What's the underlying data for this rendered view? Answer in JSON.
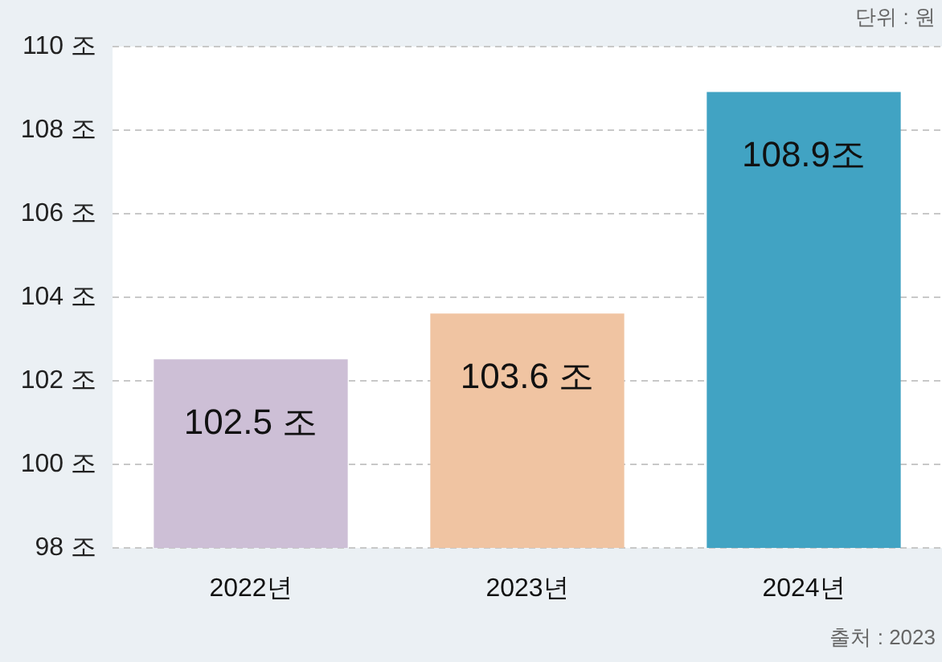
{
  "chart_data": {
    "type": "bar",
    "categories": [
      "2022년",
      "2023년",
      "2024년"
    ],
    "values": [
      102.5,
      103.6,
      108.9
    ],
    "colors": [
      "#cdbfd6",
      "#f0c4a2",
      "#41a3c3"
    ],
    "value_labels": [
      "102.5 조",
      "103.6 조",
      "108.9조"
    ],
    "ylim": [
      98,
      110
    ],
    "yticks": [
      {
        "value": 98,
        "label": "98 조"
      },
      {
        "value": 100,
        "label": "100 조"
      },
      {
        "value": 102,
        "label": "102 조"
      },
      {
        "value": 104,
        "label": "104 조"
      },
      {
        "value": 106,
        "label": "106 조"
      },
      {
        "value": 108,
        "label": "108 조"
      },
      {
        "value": 110,
        "label": "110 조"
      }
    ],
    "grid": "y",
    "annotations": [
      "단위 : 원",
      "출처 : 2023"
    ]
  }
}
